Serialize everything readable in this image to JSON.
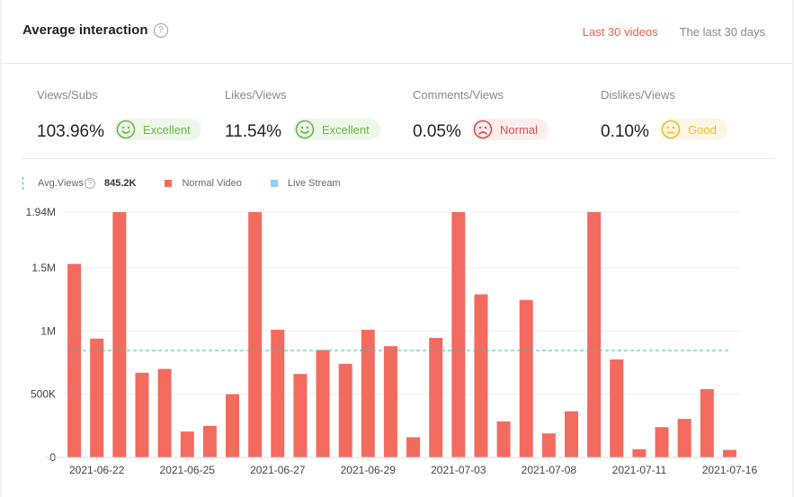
{
  "header": {
    "title": "Average interaction",
    "help_glyph": "?",
    "tabs": [
      {
        "label": "Last 30 videos",
        "active": true
      },
      {
        "label": "The last 30 days",
        "active": false
      }
    ]
  },
  "metrics": [
    {
      "label": "Views/Subs",
      "value": "103.96%",
      "badge": "Excellent",
      "rating": "excellent",
      "face_icon": "smile-icon"
    },
    {
      "label": "Likes/Views",
      "value": "11.54%",
      "badge": "Excellent",
      "rating": "excellent",
      "face_icon": "smile-icon"
    },
    {
      "label": "Comments/Views",
      "value": "0.05%",
      "badge": "Normal",
      "rating": "normal",
      "face_icon": "sad-icon"
    },
    {
      "label": "Dislikes/Views",
      "value": "0.10%",
      "badge": "Good",
      "rating": "good",
      "face_icon": "neutral-icon"
    }
  ],
  "legend": {
    "avg_label": "Avg.Views",
    "avg_value": "845.2K",
    "normal_label": "Normal Video",
    "live_label": "Live Stream"
  },
  "colors": {
    "accent": "#e8604c",
    "bar": "#f36b5f",
    "live": "#8fd1f0",
    "avg_line": "#49b8a0",
    "excellent": "#67b84a",
    "normal": "#d94a4a",
    "good": "#efbb2a"
  },
  "chart_data": {
    "type": "bar",
    "title": "",
    "xlabel": "",
    "ylabel": "",
    "ylim": [
      0,
      1940000
    ],
    "y_ticks": [
      {
        "value": 0,
        "label": "0"
      },
      {
        "value": 500000,
        "label": "500K"
      },
      {
        "value": 1000000,
        "label": "1M"
      },
      {
        "value": 1500000,
        "label": "1.5M"
      },
      {
        "value": 1940000,
        "label": "1.94M"
      }
    ],
    "x_tick_labels": [
      {
        "index": 1,
        "label": "2021-06-22"
      },
      {
        "index": 5,
        "label": "2021-06-25"
      },
      {
        "index": 9,
        "label": "2021-06-27"
      },
      {
        "index": 13,
        "label": "2021-06-29"
      },
      {
        "index": 17,
        "label": "2021-07-03"
      },
      {
        "index": 21,
        "label": "2021-07-08"
      },
      {
        "index": 25,
        "label": "2021-07-11"
      },
      {
        "index": 29,
        "label": "2021-07-16"
      }
    ],
    "average": 845200,
    "series": [
      {
        "name": "Normal Video",
        "values": [
          1530000,
          940000,
          1940000,
          670000,
          700000,
          205000,
          250000,
          500000,
          1940000,
          1010000,
          660000,
          850000,
          740000,
          1010000,
          880000,
          160000,
          945000,
          1940000,
          1290000,
          285000,
          1245000,
          190000,
          365000,
          1940000,
          775000,
          65000,
          240000,
          305000,
          540000,
          60000
        ]
      },
      {
        "name": "Live Stream",
        "values": []
      }
    ]
  }
}
